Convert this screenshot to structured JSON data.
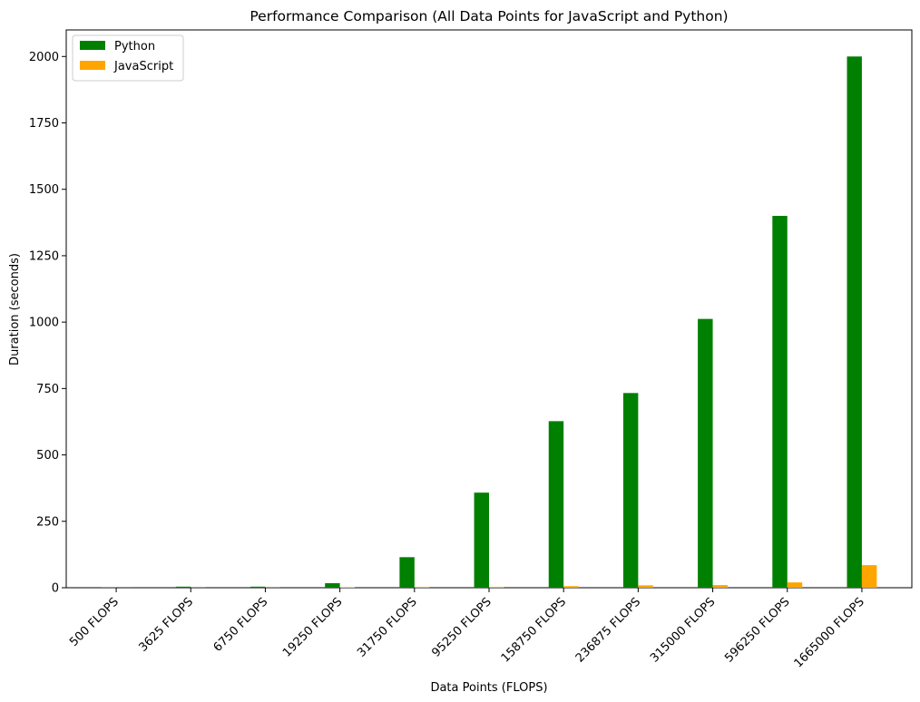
{
  "chart_data": {
    "type": "bar",
    "title": "Performance Comparison (All Data Points for JavaScript and Python)",
    "xlabel": "Data Points (FLOPS)",
    "ylabel": "Duration (seconds)",
    "ylim": [
      0,
      2100
    ],
    "yticks": [
      0,
      250,
      500,
      750,
      1000,
      1250,
      1500,
      1750,
      2000
    ],
    "categories": [
      "500 FLOPS",
      "3625 FLOPS",
      "6750 FLOPS",
      "19250 FLOPS",
      "31750 FLOPS",
      "95250 FLOPS",
      "158750 FLOPS",
      "236875 FLOPS",
      "315000 FLOPS",
      "596250 FLOPS",
      "1665000 FLOPS"
    ],
    "series": [
      {
        "name": "Python",
        "color": "#008000",
        "values": [
          1,
          4,
          4,
          17,
          115,
          358,
          627,
          733,
          1012,
          1400,
          2000
        ]
      },
      {
        "name": "JavaScript",
        "color": "#ffa500",
        "values": [
          0.2,
          0.5,
          0.5,
          2,
          3,
          3,
          6,
          9,
          10,
          20,
          85
        ]
      }
    ],
    "legend": "top-left",
    "grid": false
  }
}
